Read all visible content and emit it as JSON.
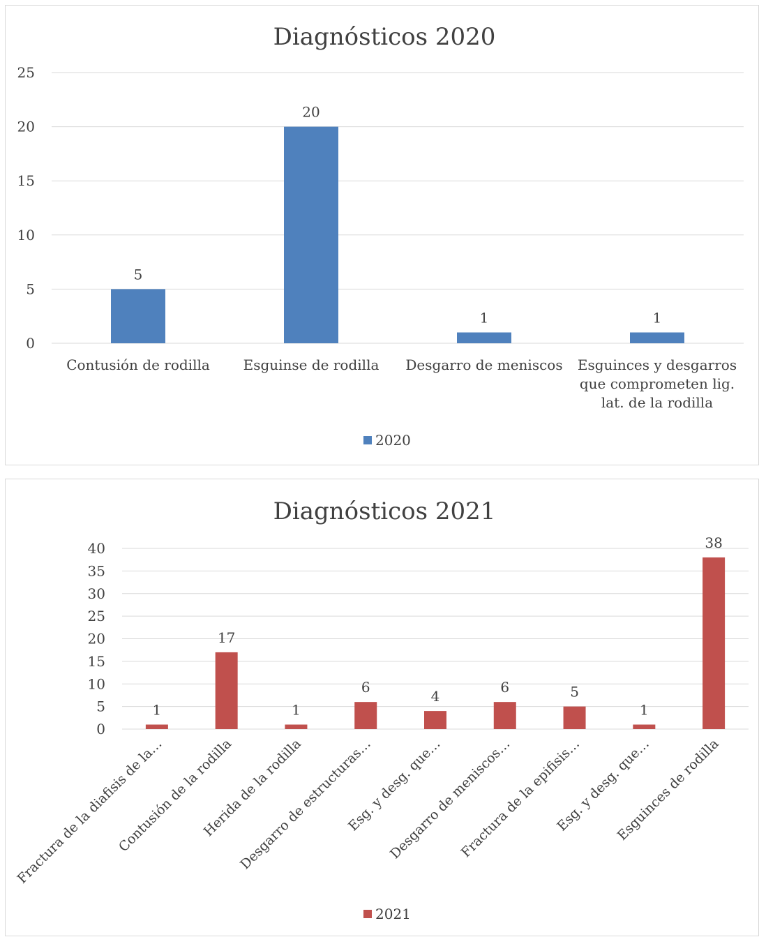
{
  "chart_data": [
    {
      "type": "bar",
      "title": "Diagnósticos 2020",
      "categories": [
        "Contusión de rodilla",
        "Esguinse de rodilla",
        "Desgarro de meniscos",
        "Esguinces y desgarros que comprometen lig. lat. de la rodilla"
      ],
      "category_lines": [
        [
          "Contusión de rodilla"
        ],
        [
          "Esguinse de rodilla"
        ],
        [
          "Desgarro de meniscos"
        ],
        [
          "Esguinces y desgarros",
          "que comprometen lig.",
          "lat. de la rodilla"
        ]
      ],
      "series": [
        {
          "name": "2020",
          "values": [
            5,
            20,
            1,
            1
          ],
          "color": "#4f81bd"
        }
      ],
      "ylim": [
        0,
        25
      ],
      "yticks": [
        0,
        5,
        10,
        15,
        20,
        25
      ],
      "grid": true,
      "legend": "bottom"
    },
    {
      "type": "bar",
      "title": "Diagnósticos 2021",
      "categories": [
        "Fractura de la diafisis de la…",
        "Contusión de la rodilla",
        "Herida de la rodilla",
        "Desgarro de estructuras…",
        "Esg. y desg. que…",
        "Desgarro de meniscos…",
        "Fractura de la epifisis…",
        "Esg. y desg. que…",
        "Esguinces de rodilla"
      ],
      "series": [
        {
          "name": "2021",
          "values": [
            1,
            17,
            1,
            6,
            4,
            6,
            5,
            1,
            38
          ],
          "color": "#c0504d"
        }
      ],
      "ylim": [
        0,
        40
      ],
      "yticks": [
        0,
        5,
        10,
        15,
        20,
        25,
        30,
        35,
        40
      ],
      "grid": true,
      "legend": "bottom"
    }
  ]
}
